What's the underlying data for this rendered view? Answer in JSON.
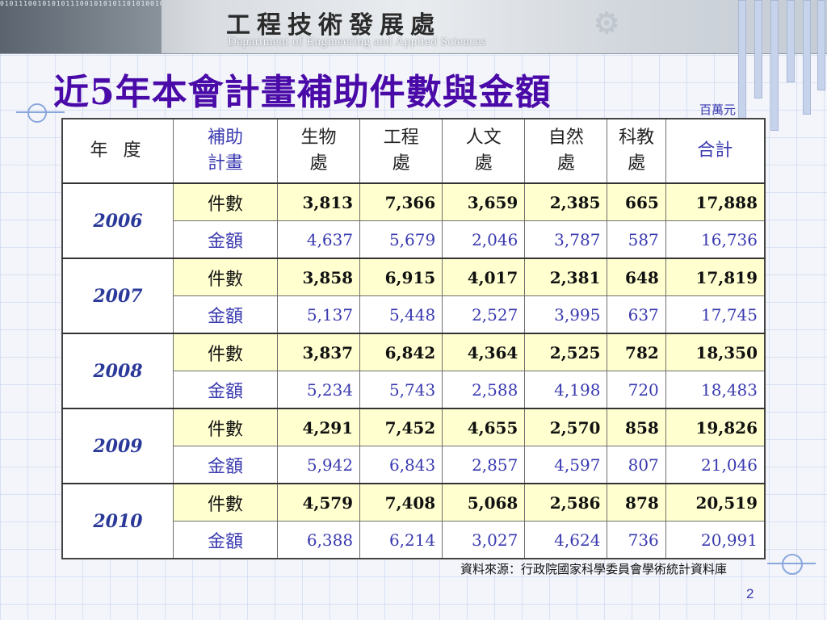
{
  "header": {
    "dept_name_cn": "工程技術發展處",
    "dept_name_en": "Department of Engineering and Applied Sciences"
  },
  "title": "近5年本會計畫補助件數與金額",
  "unit": "百萬元",
  "table": {
    "headers": {
      "year": "年 度",
      "subsidy_plan_line1": "補助",
      "subsidy_plan_line2": "計畫",
      "depts": [
        {
          "line1": "生物",
          "line2": "處"
        },
        {
          "line1": "工程",
          "line2": "處"
        },
        {
          "line1": "人文",
          "line2": "處"
        },
        {
          "line1": "自然",
          "line2": "處"
        },
        {
          "line1": "科教",
          "line2": "處"
        }
      ],
      "total": "合計"
    },
    "count_label": "件數",
    "amount_label": "金額",
    "rows": [
      {
        "year": "2006",
        "counts": [
          "3,813",
          "7,366",
          "3,659",
          "2,385",
          "665",
          "17,888"
        ],
        "amounts": [
          "4,637",
          "5,679",
          "2,046",
          "3,787",
          "587",
          "16,736"
        ]
      },
      {
        "year": "2007",
        "counts": [
          "3,858",
          "6,915",
          "4,017",
          "2,381",
          "648",
          "17,819"
        ],
        "amounts": [
          "5,137",
          "5,448",
          "2,527",
          "3,995",
          "637",
          "17,745"
        ]
      },
      {
        "year": "2008",
        "counts": [
          "3,837",
          "6,842",
          "4,364",
          "2,525",
          "782",
          "18,350"
        ],
        "amounts": [
          "5,234",
          "5,743",
          "2,588",
          "4,198",
          "720",
          "18,483"
        ]
      },
      {
        "year": "2009",
        "counts": [
          "4,291",
          "7,452",
          "4,655",
          "2,570",
          "858",
          "19,826"
        ],
        "amounts": [
          "5,942",
          "6,843",
          "2,857",
          "4,597",
          "807",
          "21,046"
        ]
      },
      {
        "year": "2010",
        "counts": [
          "4,579",
          "7,408",
          "5,068",
          "2,586",
          "878",
          "20,519"
        ],
        "amounts": [
          "6,388",
          "6,214",
          "3,027",
          "4,624",
          "736",
          "20,991"
        ]
      }
    ]
  },
  "source": "資料來源：行政院國家科學委員會學術統計資料庫",
  "page_number": "2",
  "colors": {
    "title": "#4a0aa8",
    "accent_text": "#3a3ab0",
    "count_row_bg": "#ffffd0"
  }
}
